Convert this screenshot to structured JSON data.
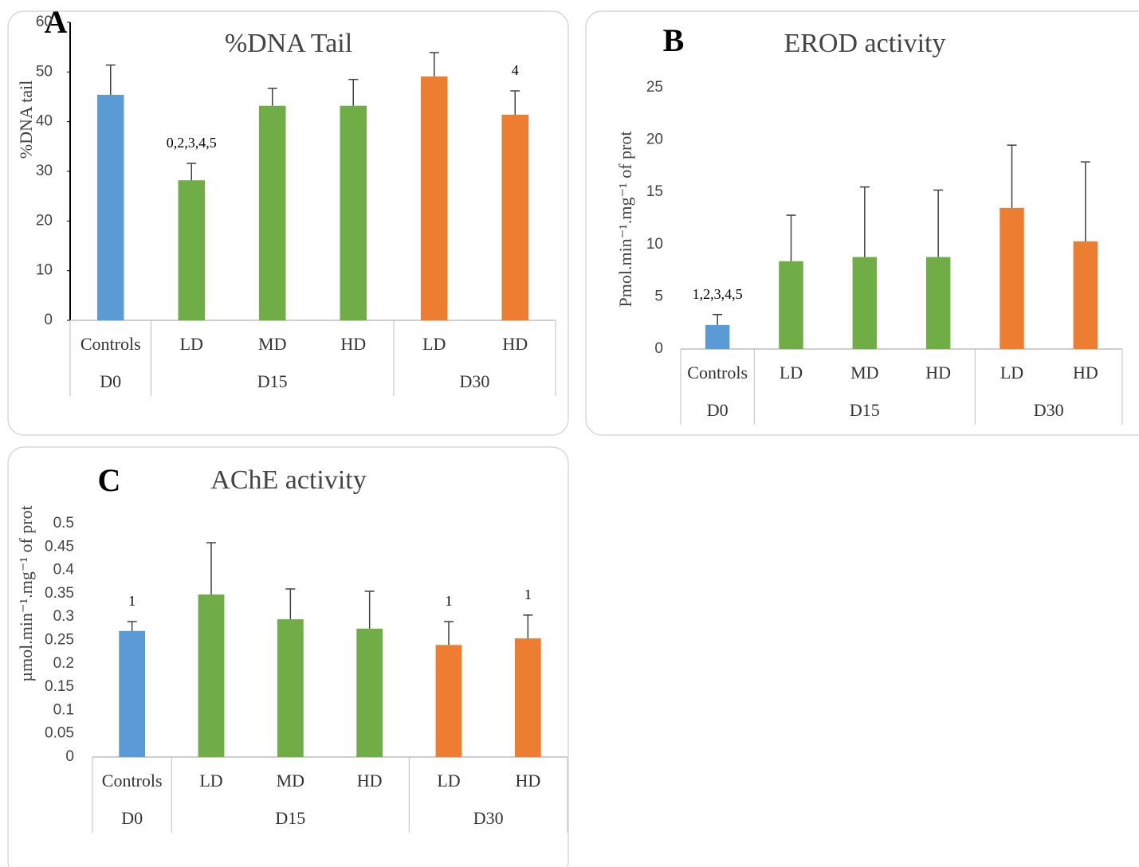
{
  "chart_data": [
    {
      "type": "bar",
      "panel_label": "A",
      "title": "%DNA Tail",
      "ylabel": "%DNA tail",
      "ylim": [
        0,
        60
      ],
      "yticks": [
        0,
        10,
        20,
        30,
        40,
        50,
        60
      ],
      "y_axis_line": true,
      "groups": [
        {
          "name": "D0",
          "color": "#5b9bd5",
          "categories": [
            "Controls"
          ]
        },
        {
          "name": "D15",
          "color": "#70ad47",
          "categories": [
            "LD",
            "MD",
            "HD"
          ]
        },
        {
          "name": "D30",
          "color": "#ed7d31",
          "categories": [
            "LD",
            "HD"
          ]
        }
      ],
      "values": [
        45.4,
        28.2,
        43.2,
        43.2,
        49.1,
        41.4
      ],
      "errors": [
        6.0,
        3.4,
        3.5,
        5.3,
        4.8,
        4.8
      ],
      "annotations": [
        null,
        "0,2,3,4,5",
        null,
        null,
        null,
        "4"
      ]
    },
    {
      "type": "bar",
      "panel_label": "B",
      "title": "EROD activity",
      "ylabel": "Pmol.min⁻¹.mg⁻¹ of prot",
      "ylim": [
        0,
        25
      ],
      "yticks": [
        0,
        5,
        10,
        15,
        20,
        25
      ],
      "y_axis_line": false,
      "groups": [
        {
          "name": "D0",
          "color": "#5b9bd5",
          "categories": [
            "Controls"
          ]
        },
        {
          "name": "D15",
          "color": "#70ad47",
          "categories": [
            "LD",
            "MD",
            "HD"
          ]
        },
        {
          "name": "D30",
          "color": "#ed7d31",
          "categories": [
            "LD",
            "HD"
          ]
        }
      ],
      "values": [
        2.3,
        8.4,
        8.8,
        8.8,
        13.5,
        10.3
      ],
      "errors": [
        1.0,
        4.4,
        6.7,
        6.4,
        6.0,
        7.6
      ],
      "annotations": [
        "1,2,3,4,5",
        null,
        null,
        null,
        null,
        null
      ]
    },
    {
      "type": "bar",
      "panel_label": "C",
      "title": "AChE activity",
      "ylabel": "µmol.min⁻¹.mg⁻¹ of prot",
      "ylim": [
        0,
        0.5
      ],
      "yticks": [
        0,
        0.05,
        0.1,
        0.15,
        0.2,
        0.25,
        0.3,
        0.35,
        0.4,
        0.45,
        0.5
      ],
      "y_axis_line": false,
      "groups": [
        {
          "name": "D0",
          "color": "#5b9bd5",
          "categories": [
            "Controls"
          ]
        },
        {
          "name": "D15",
          "color": "#70ad47",
          "categories": [
            "LD",
            "MD",
            "HD"
          ]
        },
        {
          "name": "D30",
          "color": "#ed7d31",
          "categories": [
            "LD",
            "HD"
          ]
        }
      ],
      "values": [
        0.27,
        0.348,
        0.295,
        0.275,
        0.24,
        0.254
      ],
      "errors": [
        0.02,
        0.111,
        0.065,
        0.08,
        0.05,
        0.05
      ],
      "annotations": [
        "1",
        null,
        null,
        null,
        "1",
        "1"
      ]
    }
  ]
}
